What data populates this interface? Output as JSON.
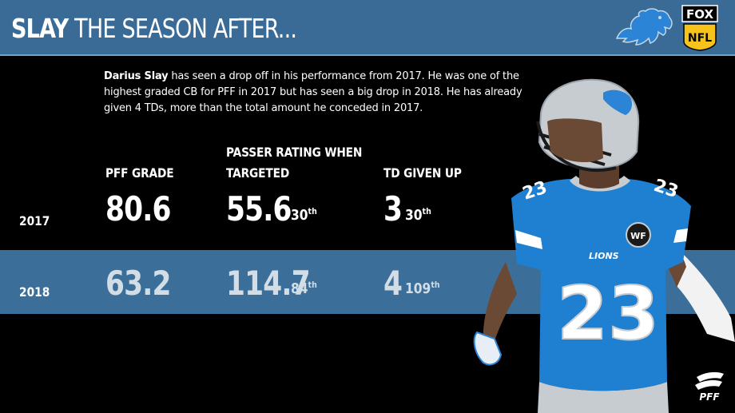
{
  "header": {
    "title_bold": "SLAY",
    "title_rest": " THE SEASON AFTER...",
    "team_logo_icon": "lion-logo-icon",
    "network_logo_text_top": "FOX",
    "network_logo_text_bottom": "NFL"
  },
  "intro": {
    "name": "Darius Slay",
    "line1_rest": " has seen a drop off in his performance from 2017. He was one of the",
    "line2": "highest graded CB for PFF in 2017 but has seen a big drop in 2018. He has already",
    "line3": "given 4 TDs, more than the total amount he conceded in 2017."
  },
  "columns": {
    "pff_grade": "PFF GRADE",
    "passer_rating_line1": "PASSER RATING WHEN",
    "passer_rating_line2": "TARGETED",
    "td_given_up": "TD GIVEN UP"
  },
  "rows": [
    {
      "year": "2017",
      "pff_grade": "80.6",
      "passer_rating": "55.6",
      "passer_rank_num": "30",
      "passer_rank_suffix": "th",
      "td": "3",
      "td_rank_num": "30",
      "td_rank_suffix": "th"
    },
    {
      "year": "2018",
      "pff_grade": "63.2",
      "passer_rating": "114.7",
      "passer_rank_num": "84",
      "passer_rank_suffix": "th",
      "td": "4",
      "td_rank_num": "109",
      "td_rank_suffix": "th"
    }
  ],
  "player": {
    "jersey_number": "23",
    "jersey_wordmark": "LIONS",
    "patch_text": "WF",
    "helmet_color": "#c7ccd1",
    "jersey_color": "#1f7fd1"
  },
  "footer": {
    "brand_logo_text": "PFF"
  },
  "colors": {
    "header_bg": "#3a6b96",
    "band_bg": "#3b6f9a",
    "background": "#000000"
  }
}
